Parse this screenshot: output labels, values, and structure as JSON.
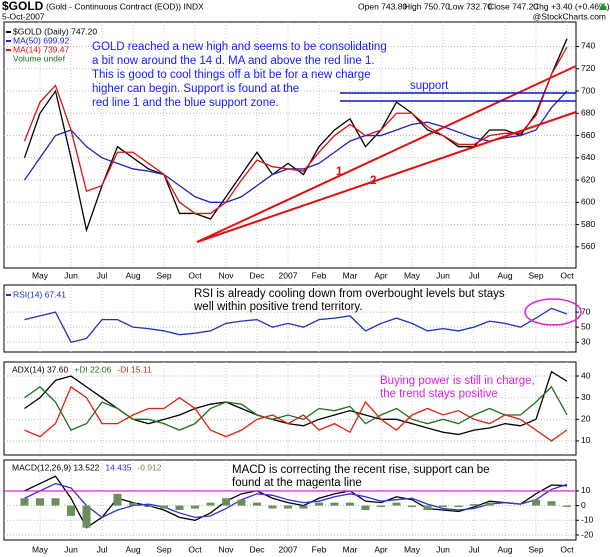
{
  "header": {
    "symbol": "$GOLD",
    "name": "(Gold - Continuous Contract (EOD)) INDX",
    "date": "5-Oct-2007",
    "quote": [
      "Open 743.80",
      "High 750.70",
      "Low 732.70",
      "Close 747.20",
      "Chg +3.40 (+0.46%)"
    ],
    "credit": "@StockCharts.com"
  },
  "chart_data": [
    {
      "type": "line",
      "categories": [
        null,
        "May",
        null,
        "Jun",
        null,
        "Jul",
        null,
        "Aug",
        null,
        "Sep",
        null,
        "Oct",
        null,
        "Nov",
        null,
        "Dec",
        null,
        "2007",
        null,
        "Feb",
        null,
        "Mar",
        null,
        "Apr",
        null,
        "May",
        null,
        "Jun",
        null,
        "Jul",
        null,
        "Aug",
        null,
        "Sep",
        null,
        "Oct"
      ],
      "ylim": [
        541,
        762
      ],
      "yticks": [
        560,
        580,
        600,
        620,
        640,
        660,
        680,
        700,
        720,
        740
      ],
      "grid": true,
      "series": [
        {
          "name": "$GOLD (Daily) 747.20",
          "color": "#000000",
          "values": [
            640,
            680,
            700,
            640,
            575,
            615,
            650,
            640,
            630,
            625,
            590,
            590,
            585,
            605,
            625,
            645,
            625,
            635,
            625,
            650,
            665,
            675,
            650,
            665,
            690,
            680,
            665,
            660,
            650,
            650,
            665,
            665,
            660,
            680,
            715,
            747
          ]
        },
        {
          "name": "MA(50) 699.92",
          "color": "#2020c0",
          "values": [
            620,
            640,
            660,
            665,
            650,
            640,
            635,
            630,
            628,
            625,
            615,
            605,
            600,
            600,
            605,
            615,
            625,
            630,
            630,
            635,
            645,
            655,
            660,
            660,
            665,
            670,
            672,
            668,
            663,
            658,
            655,
            658,
            660,
            665,
            685,
            699.92
          ]
        },
        {
          "name": "MA(14) 739.47",
          "color": "#e01010",
          "values": [
            655,
            690,
            705,
            665,
            610,
            615,
            645,
            645,
            635,
            625,
            600,
            590,
            590,
            600,
            620,
            638,
            632,
            630,
            628,
            645,
            660,
            670,
            660,
            665,
            680,
            680,
            668,
            660,
            652,
            652,
            660,
            662,
            662,
            678,
            715,
            739.47
          ]
        }
      ],
      "legend_extra": "Volume undef",
      "annotation": [
        "GOLD reached a new high and seems to be consolidating",
        "a bit now around the 14 d. MA and above the red line 1.",
        "This is good to cool things off a bit be for a new charge",
        "higher can begin. Support is found at the",
        "red line 1 and the blue support zone."
      ],
      "labels": [
        "support",
        "1",
        "2"
      ]
    },
    {
      "type": "line",
      "ylim": [
        17,
        106
      ],
      "yticks": [
        30,
        50,
        70
      ],
      "grid": true,
      "series": [
        {
          "name": "RSI(14) 67.41",
          "color": "#2030c0",
          "values": [
            60,
            65,
            70,
            30,
            35,
            60,
            60,
            50,
            48,
            45,
            40,
            42,
            45,
            55,
            58,
            60,
            50,
            55,
            50,
            60,
            62,
            65,
            45,
            55,
            62,
            55,
            45,
            48,
            45,
            50,
            58,
            55,
            50,
            62,
            75,
            67.41
          ]
        }
      ],
      "annotation": [
        "RSI is already cooling down from overbought levels but stays",
        "well within positive trend territory."
      ]
    },
    {
      "type": "line",
      "ylim": [
        3.5,
        46.5
      ],
      "yticks": [
        10,
        20,
        30,
        40
      ],
      "grid": true,
      "series": [
        {
          "name": "ADX(14) 37.60",
          "color": "#000000",
          "values": [
            25,
            30,
            38,
            40,
            35,
            30,
            25,
            20,
            18,
            20,
            22,
            25,
            27,
            28,
            25,
            22,
            20,
            18,
            17,
            20,
            22,
            24,
            22,
            20,
            20,
            18,
            16,
            14,
            13,
            15,
            16,
            18,
            17,
            20,
            42,
            37.6
          ]
        },
        {
          "name": "+DI 22.06",
          "color": "#207020",
          "values": [
            30,
            35,
            28,
            15,
            18,
            28,
            25,
            20,
            20,
            18,
            15,
            18,
            25,
            28,
            27,
            22,
            20,
            22,
            20,
            25,
            24,
            26,
            18,
            22,
            25,
            20,
            18,
            20,
            18,
            22,
            25,
            22,
            22,
            28,
            35,
            22.06
          ]
        },
        {
          "name": "-DI 15.11",
          "color": "#e02010",
          "values": [
            15,
            12,
            18,
            35,
            30,
            18,
            18,
            22,
            25,
            25,
            30,
            25,
            15,
            12,
            15,
            20,
            22,
            18,
            22,
            15,
            18,
            14,
            28,
            20,
            15,
            22,
            25,
            22,
            24,
            20,
            18,
            22,
            20,
            15,
            10,
            15.11
          ]
        }
      ],
      "annotation": [
        "Buying power is still in charge,",
        "the trend stays positive"
      ]
    },
    {
      "type": "line",
      "ylim": [
        -23.4,
        31
      ],
      "yticks": [
        -20,
        -10,
        0,
        10
      ],
      "grid": true,
      "series": [
        {
          "name": "MACD(12,26,9) 13.522",
          "color": "#000000",
          "values": [
            10,
            15,
            20,
            5,
            -15,
            -8,
            5,
            2,
            0,
            -3,
            -8,
            -10,
            -5,
            3,
            8,
            10,
            5,
            2,
            0,
            5,
            8,
            10,
            3,
            2,
            6,
            4,
            -2,
            -3,
            -4,
            -1,
            3,
            2,
            1,
            8,
            14,
            13.522
          ]
        },
        {
          "name": "14.435",
          "color": "#3030e0",
          "values": [
            5,
            10,
            15,
            12,
            0,
            -8,
            -3,
            0,
            1,
            -1,
            -5,
            -8,
            -7,
            -2,
            4,
            8,
            7,
            4,
            2,
            3,
            6,
            8,
            6,
            3,
            4,
            5,
            1,
            -2,
            -3,
            -2,
            1,
            2,
            1,
            4,
            11,
            14.435
          ]
        },
        {
          "name": "-0.912",
          "color": "#6a8f5a",
          "type": "bar",
          "values": [
            5,
            5,
            5,
            -7,
            -15,
            0,
            8,
            2,
            -1,
            -2,
            -3,
            -2,
            2,
            5,
            4,
            2,
            -2,
            -2,
            -2,
            2,
            2,
            2,
            -3,
            -1,
            2,
            -1,
            -3,
            -1,
            -1,
            1,
            2,
            0,
            0,
            4,
            3,
            -0.912
          ]
        }
      ],
      "annotation": [
        "MACD is correcting the recent rise, support can be",
        "found at the magenta line"
      ]
    }
  ]
}
